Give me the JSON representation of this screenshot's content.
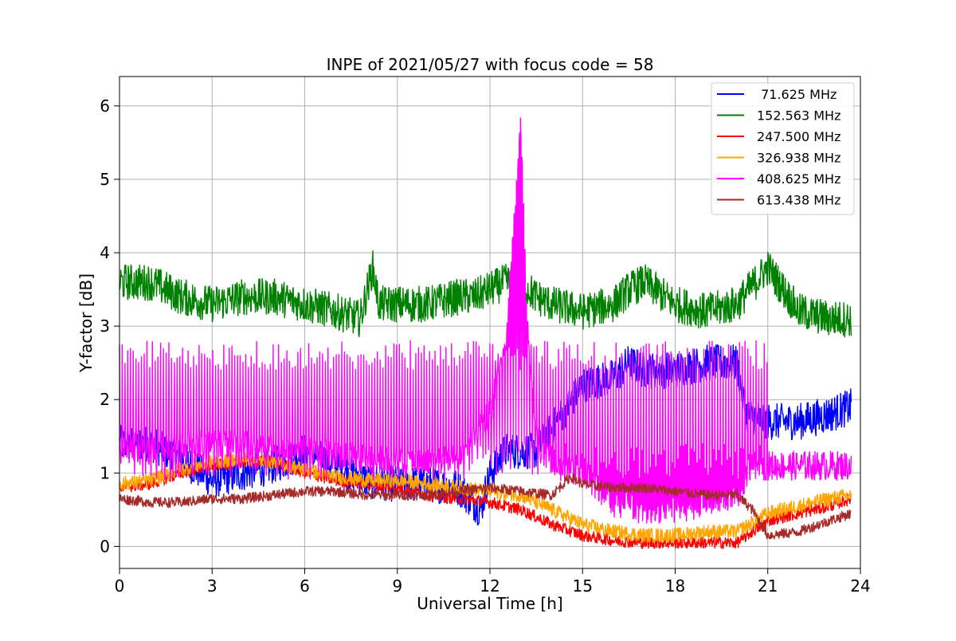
{
  "chart_data": {
    "type": "line",
    "title": "INPE of 2021/05/27 with focus code = 58",
    "xlabel": "Universal Time [h]",
    "ylabel": "Y-factor [dB]",
    "xlim": [
      0,
      24
    ],
    "ylim": [
      -0.3,
      6.4
    ],
    "xticks": [
      0,
      3,
      6,
      9,
      12,
      15,
      18,
      21,
      24
    ],
    "yticks": [
      0,
      1,
      2,
      3,
      4,
      5,
      6
    ],
    "grid": true,
    "legend_position": "top-right",
    "series": [
      {
        "name": " 71.625 MHz",
        "color": "#0000ff",
        "x": [
          0,
          1,
          2,
          3,
          4,
          5,
          6,
          7,
          8,
          9,
          10,
          11,
          11.7,
          12,
          12.5,
          13,
          13.5,
          14,
          15,
          16,
          16.5,
          17,
          18,
          19,
          20,
          20.3,
          21,
          22,
          23,
          23.7
        ],
        "values": [
          1.4,
          1.4,
          1.2,
          0.9,
          1.0,
          1.1,
          1.3,
          1.1,
          0.9,
          0.85,
          0.85,
          0.8,
          0.5,
          1.0,
          1.3,
          1.3,
          1.3,
          1.6,
          2.2,
          2.3,
          2.5,
          2.4,
          2.4,
          2.5,
          2.5,
          1.8,
          1.7,
          1.7,
          1.8,
          1.9
        ],
        "noise": 0.25
      },
      {
        "name": "152.563 MHz",
        "color": "#008000",
        "x": [
          0,
          0.5,
          1,
          2,
          3,
          4,
          5,
          6,
          7,
          7.8,
          8.2,
          8.4,
          9,
          10,
          11,
          11.5,
          12,
          12.5,
          13,
          13.5,
          14,
          15,
          16,
          16.5,
          17,
          18,
          19,
          20,
          21,
          22,
          23,
          23.7
        ],
        "values": [
          3.6,
          3.6,
          3.6,
          3.4,
          3.3,
          3.4,
          3.4,
          3.3,
          3.2,
          3.1,
          3.8,
          3.3,
          3.3,
          3.3,
          3.4,
          3.4,
          3.5,
          3.6,
          3.6,
          3.4,
          3.3,
          3.2,
          3.3,
          3.5,
          3.6,
          3.3,
          3.2,
          3.3,
          3.8,
          3.2,
          3.1,
          3.1
        ],
        "noise": 0.25
      },
      {
        "name": "247.500 MHz",
        "color": "#ff0000",
        "x": [
          0,
          1,
          2,
          3,
          4,
          5,
          6,
          7,
          8,
          9,
          10,
          11,
          12,
          13,
          14,
          15,
          16,
          17,
          18,
          19,
          20,
          21,
          22,
          23,
          23.7
        ],
        "values": [
          0.8,
          0.85,
          1.0,
          1.1,
          1.15,
          1.15,
          1.0,
          0.9,
          0.85,
          0.8,
          0.7,
          0.65,
          0.6,
          0.5,
          0.3,
          0.15,
          0.08,
          0.05,
          0.05,
          0.05,
          0.05,
          0.35,
          0.45,
          0.55,
          0.65
        ],
        "noise": 0.08
      },
      {
        "name": "326.938 MHz",
        "color": "#ffa500",
        "x": [
          0,
          1,
          2,
          3,
          4,
          5,
          6,
          7,
          8,
          9,
          10,
          11,
          12,
          13,
          14,
          15,
          16,
          17,
          18,
          19,
          20,
          21,
          22,
          23,
          23.7
        ],
        "values": [
          0.85,
          0.9,
          1.05,
          1.15,
          1.2,
          1.15,
          1.05,
          0.95,
          0.9,
          0.9,
          0.85,
          0.8,
          0.75,
          0.7,
          0.5,
          0.3,
          0.2,
          0.15,
          0.15,
          0.2,
          0.2,
          0.45,
          0.55,
          0.65,
          0.7
        ],
        "noise": 0.1
      },
      {
        "name": "408.625 MHz",
        "color": "#ff00ff",
        "x": [
          0,
          1,
          2,
          3,
          4,
          5,
          6,
          7,
          8,
          9,
          10,
          11,
          12,
          12.5,
          12.8,
          13,
          13.2,
          13.5,
          14,
          15,
          16,
          17,
          18,
          19,
          20,
          20.5,
          21,
          22,
          23,
          23.7
        ],
        "values": [
          1.4,
          1.3,
          1.4,
          1.4,
          1.4,
          1.35,
          1.3,
          1.25,
          1.2,
          1.15,
          1.15,
          1.2,
          1.8,
          2.8,
          4.5,
          5.8,
          3.0,
          1.5,
          1.1,
          1.0,
          0.6,
          0.5,
          0.5,
          0.6,
          0.7,
          1.1,
          1.1,
          1.1,
          1.1,
          1.1
        ],
        "noise": 0.2,
        "spike_to": 2.6
      },
      {
        "name": "613.438 MHz",
        "color": "#a52a2a",
        "x": [
          0,
          1,
          2,
          3,
          4,
          5,
          6,
          7,
          8,
          9,
          10,
          11,
          12,
          13,
          14,
          14.6,
          15,
          16,
          17,
          18,
          19,
          20,
          20.5,
          21,
          22,
          23,
          23.7
        ],
        "values": [
          0.65,
          0.6,
          0.6,
          0.65,
          0.65,
          0.7,
          0.75,
          0.75,
          0.7,
          0.7,
          0.7,
          0.75,
          0.8,
          0.75,
          0.7,
          0.95,
          0.85,
          0.8,
          0.8,
          0.75,
          0.7,
          0.7,
          0.5,
          0.15,
          0.2,
          0.35,
          0.45
        ],
        "noise": 0.07
      }
    ]
  }
}
